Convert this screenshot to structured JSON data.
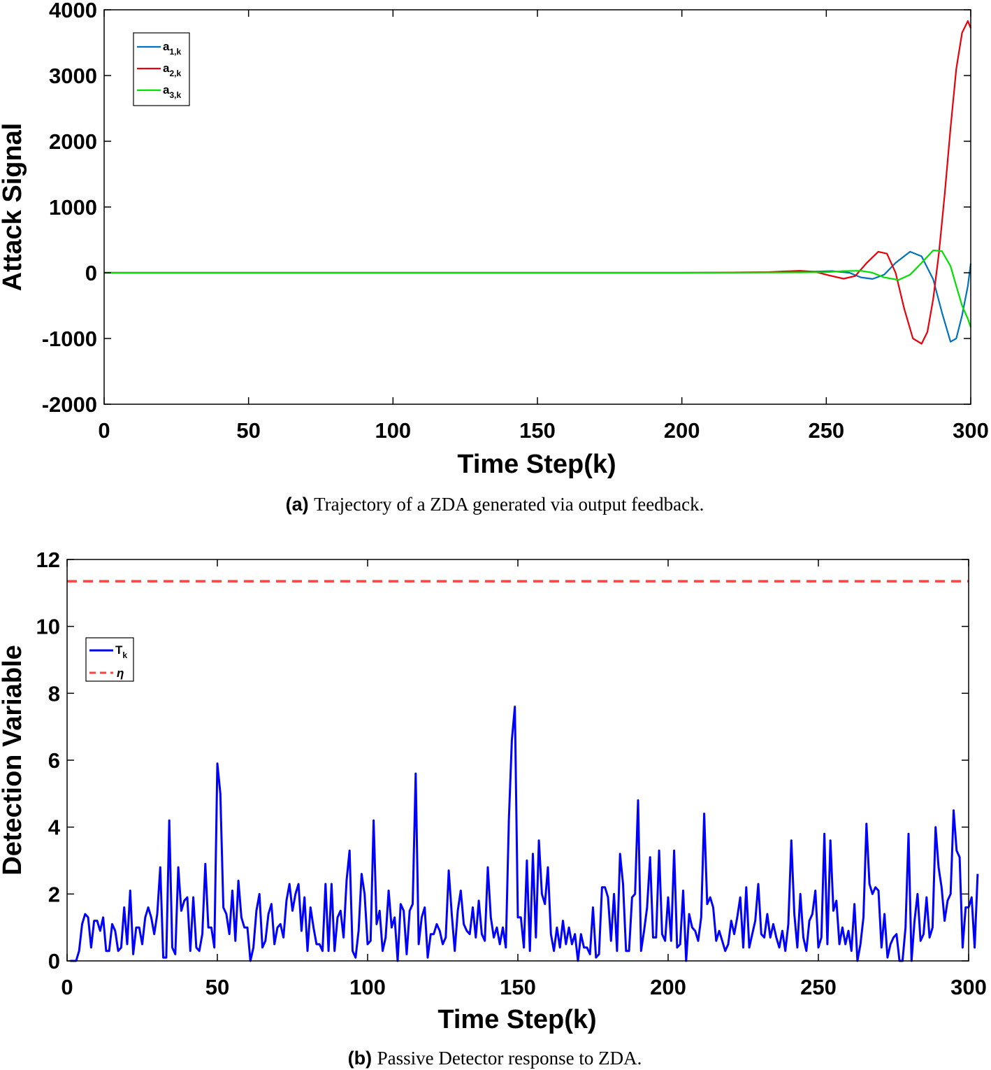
{
  "figure": {
    "panel_a": {
      "caption_tag": "(a)",
      "caption_text": "Trajectory of a ZDA generated via output feedback."
    },
    "panel_b": {
      "caption_tag": "(b)",
      "caption_text": "Passive Detector response to ZDA."
    }
  },
  "chart_data": [
    {
      "type": "line",
      "title": "",
      "xlabel": "Time Step(k)",
      "ylabel": "Attack Signal",
      "xlim": [
        0,
        300
      ],
      "ylim": [
        -2000,
        4000
      ],
      "xticks": [
        "0",
        "50",
        "100",
        "150",
        "200",
        "250",
        "300"
      ],
      "yticks": [
        "-2000",
        "-1000",
        "0",
        "1000",
        "2000",
        "3000",
        "4000"
      ],
      "grid": false,
      "legend_position": "top-left",
      "series": [
        {
          "name": "a1,k",
          "label_main": "a",
          "label_sub": "1,k",
          "color": "#0072BD",
          "x": [
            0,
            200,
            210,
            220,
            230,
            240,
            246,
            252,
            258,
            262,
            266,
            270,
            274,
            279,
            283,
            287,
            290,
            293,
            295,
            297,
            299,
            300
          ],
          "y": [
            0,
            0,
            2,
            4,
            6,
            10,
            18,
            25,
            0,
            -70,
            -95,
            -30,
            150,
            320,
            250,
            -100,
            -600,
            -1050,
            -1000,
            -650,
            -200,
            140
          ]
        },
        {
          "name": "a2,k",
          "label_main": "a",
          "label_sub": "2,k",
          "color": "#E8000B",
          "x": [
            0,
            200,
            210,
            220,
            230,
            235,
            241,
            246,
            251,
            256,
            260,
            264,
            268,
            271,
            274,
            277,
            280,
            283,
            285,
            287,
            289,
            291,
            293,
            295,
            297,
            299,
            300
          ],
          "y": [
            0,
            0,
            2,
            5,
            10,
            20,
            30,
            15,
            -40,
            -90,
            -50,
            150,
            320,
            290,
            0,
            -550,
            -1000,
            -1080,
            -900,
            -400,
            300,
            1200,
            2200,
            3100,
            3650,
            3830,
            3720
          ]
        },
        {
          "name": "a3,k",
          "label_main": "a",
          "label_sub": "3,k",
          "color": "#00E000",
          "x": [
            0,
            200,
            210,
            220,
            230,
            240,
            250,
            256,
            262,
            266,
            270,
            275,
            279,
            283,
            287,
            290,
            293,
            295,
            297,
            299,
            300
          ],
          "y": [
            0,
            0,
            0,
            2,
            3,
            5,
            8,
            25,
            30,
            0,
            -70,
            -110,
            -30,
            150,
            340,
            330,
            100,
            -200,
            -500,
            -700,
            -830
          ]
        }
      ]
    },
    {
      "type": "line",
      "title": "",
      "xlabel": "Time Step(k)",
      "ylabel": "Detection Variable",
      "xlim": [
        0,
        300
      ],
      "ylim": [
        0,
        12
      ],
      "xticks": [
        "0",
        "50",
        "100",
        "150",
        "200",
        "250",
        "300"
      ],
      "yticks": [
        "0",
        "2",
        "4",
        "6",
        "8",
        "10",
        "12"
      ],
      "grid": false,
      "legend_position": "top-left",
      "series": [
        {
          "name": "Tk",
          "label_main": "T",
          "label_sub": "k",
          "color": "#0000FF",
          "style": "solid",
          "x_start": 1,
          "y": [
            0.0,
            0.0,
            0.0,
            0.3,
            1.1,
            1.4,
            1.3,
            0.4,
            1.2,
            1.2,
            0.9,
            1.3,
            0.3,
            0.3,
            1.1,
            0.9,
            0.3,
            0.4,
            1.6,
            0.5,
            2.1,
            0.2,
            1.0,
            1.0,
            0.5,
            1.3,
            1.6,
            1.3,
            0.8,
            1.4,
            2.8,
            0.1,
            0.1,
            4.2,
            0.4,
            0.2,
            2.8,
            1.5,
            1.8,
            1.9,
            0.3,
            1.9,
            0.4,
            0.3,
            0.8,
            2.9,
            1.0,
            1.0,
            0.4,
            5.9,
            5.0,
            1.6,
            1.4,
            0.8,
            2.1,
            0.6,
            2.4,
            1.3,
            1.0,
            1.0,
            0.0,
            0.4,
            1.5,
            2.0,
            0.4,
            0.6,
            1.4,
            1.7,
            0.5,
            1.0,
            1.1,
            0.7,
            1.8,
            2.3,
            1.5,
            2.0,
            2.3,
            0.9,
            1.9,
            0.3,
            1.6,
            1.0,
            0.5,
            0.5,
            0.3,
            2.3,
            0.3,
            2.3,
            0.3,
            1.3,
            1.5,
            0.7,
            2.4,
            3.3,
            0.3,
            0.1,
            0.9,
            2.6,
            2.0,
            0.5,
            0.6,
            4.2,
            1.1,
            1.5,
            0.3,
            0.7,
            2.1,
            1.0,
            1.3,
            0.0,
            1.7,
            1.5,
            0.2,
            1.5,
            1.7,
            5.6,
            0.5,
            1.3,
            1.6,
            0.1,
            0.8,
            0.8,
            1.1,
            0.9,
            0.5,
            0.7,
            2.7,
            1.4,
            0.3,
            1.5,
            2.1,
            1.1,
            0.9,
            0.8,
            1.6,
            0.7,
            1.8,
            0.8,
            0.6,
            2.8,
            1.3,
            0.7,
            1.0,
            0.5,
            1.0,
            0.4,
            4.2,
            6.6,
            7.6,
            1.3,
            1.3,
            0.4,
            3.0,
            0.3,
            3.2,
            0.7,
            3.6,
            2.0,
            1.7,
            2.8,
            0.8,
            0.3,
            1.0,
            0.4,
            1.2,
            0.5,
            1.0,
            0.5,
            0.8,
            0.0,
            0.8,
            0.4,
            0.4,
            0.2,
            1.6,
            0.1,
            0.2,
            2.2,
            2.2,
            1.9,
            0.6,
            2.0,
            0.3,
            3.2,
            2.3,
            0.3,
            0.3,
            1.9,
            2.0,
            4.8,
            0.3,
            0.9,
            1.6,
            3.1,
            0.7,
            0.7,
            3.3,
            0.8,
            0.6,
            1.9,
            0.6,
            3.3,
            0.4,
            0.5,
            2.1,
            0.0,
            1.4,
            1.0,
            0.9,
            0.6,
            1.3,
            4.4,
            1.7,
            1.9,
            1.6,
            0.6,
            0.9,
            0.6,
            0.3,
            0.5,
            1.2,
            0.8,
            1.3,
            1.9,
            0.4,
            2.2,
            0.4,
            0.8,
            1.2,
            2.3,
            0.8,
            0.7,
            1.4,
            0.7,
            1.1,
            0.7,
            0.4,
            0.9,
            0.3,
            1.1,
            3.6,
            1.4,
            0.4,
            2.0,
            0.7,
            0.3,
            1.2,
            1.4,
            2.1,
            0.4,
            0.7,
            3.8,
            0.5,
            3.6,
            1.5,
            1.8,
            0.5,
            1.0,
            0.5,
            0.9,
            0.3,
            1.7,
            0.0,
            0.5,
            1.3,
            4.1,
            2.3,
            2.0,
            2.2,
            2.1,
            0.4,
            1.4,
            0.1,
            0.5,
            0.7,
            0.8,
            0.0,
            0.0,
            1.0,
            3.8,
            0.0,
            1.2,
            2.0,
            0.6,
            0.8,
            1.9,
            0.7,
            1.0,
            4.0,
            2.8,
            2.2,
            1.2,
            1.8,
            2.0,
            4.5,
            3.3,
            3.1,
            0.4,
            1.6,
            1.6,
            1.9,
            0.4,
            2.6
          ]
        },
        {
          "name": "η",
          "label_main": "η",
          "label_sub": "",
          "color": "#FF4444",
          "style": "dashed",
          "x": [
            0,
            300
          ],
          "y": [
            11.35,
            11.35
          ]
        }
      ]
    }
  ]
}
